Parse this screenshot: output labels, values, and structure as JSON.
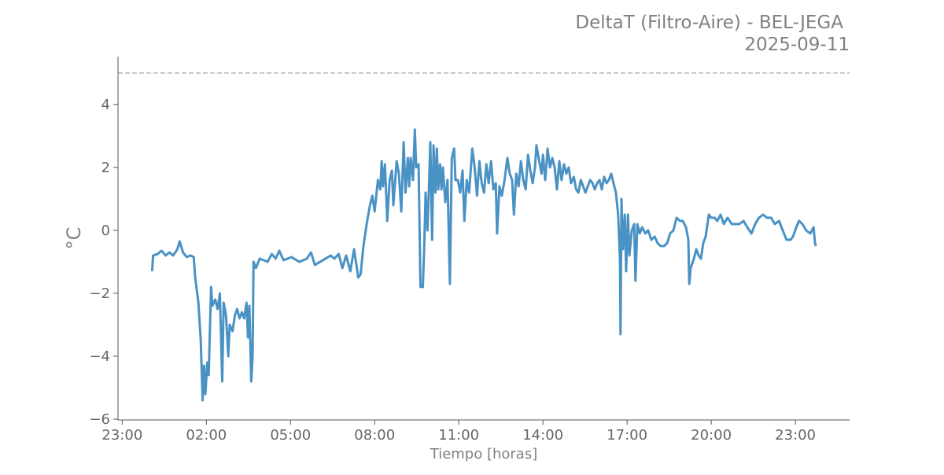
{
  "chart_data": {
    "type": "line",
    "title": "DeltaT (Filtro-Aire) - BEL-JEGA",
    "subtitle": "2025-09-11",
    "xlabel": "Tiempo [horas]",
    "ylabel": "°C",
    "xlim": [
      "2025-09-10 22:51",
      "2025-09-12 00:56"
    ],
    "ylim": [
      -6.0,
      5.52
    ],
    "grid": false,
    "reference_line": {
      "y": 5,
      "style": "dashed",
      "color": "#bbbbbb"
    },
    "line_color": "#4a92c4",
    "x_ticks": [
      {
        "label": "23:00",
        "time": "2025-09-10 23:00"
      },
      {
        "label": "02:00",
        "time": "2025-09-11 02:00"
      },
      {
        "label": "05:00",
        "time": "2025-09-11 05:00"
      },
      {
        "label": "08:00",
        "time": "2025-09-11 08:00"
      },
      {
        "label": "11:00",
        "time": "2025-09-11 11:00"
      },
      {
        "label": "14:00",
        "time": "2025-09-11 14:00"
      },
      {
        "label": "17:00",
        "time": "2025-09-11 17:00"
      },
      {
        "label": "20:00",
        "time": "2025-09-11 20:00"
      },
      {
        "label": "23:00",
        "time": "2025-09-11 23:00"
      }
    ],
    "y_ticks": [
      {
        "label": "4",
        "value": 4
      },
      {
        "label": "2",
        "value": 2
      },
      {
        "label": "0",
        "value": 0
      },
      {
        "label": "−2",
        "value": -2
      },
      {
        "label": "−4",
        "value": -4
      },
      {
        "label": "−6",
        "value": -6
      }
    ],
    "x": [
      "00:04",
      "00:06",
      "00:16",
      "00:24",
      "00:33",
      "00:41",
      "00:49",
      "00:58",
      "01:03",
      "01:10",
      "01:18",
      "01:26",
      "01:33",
      "01:36",
      "01:43",
      "01:48",
      "01:52",
      "01:55",
      "01:58",
      "02:02",
      "02:05",
      "02:10",
      "02:13",
      "02:19",
      "02:24",
      "02:29",
      "02:34",
      "02:37",
      "02:42",
      "02:47",
      "02:50",
      "02:56",
      "03:01",
      "03:06",
      "03:11",
      "03:16",
      "03:21",
      "03:26",
      "03:29",
      "03:32",
      "03:36",
      "03:39",
      "03:41",
      "03:46",
      "03:54",
      "04:11",
      "04:20",
      "04:28",
      "04:36",
      "04:45",
      "05:02",
      "05:19",
      "05:35",
      "05:44",
      "05:52",
      "06:09",
      "06:26",
      "06:34",
      "06:43",
      "06:51",
      "06:59",
      "07:08",
      "07:16",
      "07:25",
      "07:30",
      "07:36",
      "07:43",
      "07:50",
      "07:55",
      "08:00",
      "08:07",
      "08:12",
      "08:15",
      "08:18",
      "08:22",
      "08:27",
      "08:32",
      "08:37",
      "08:40",
      "08:47",
      "08:52",
      "08:57",
      "09:02",
      "09:06",
      "09:11",
      "09:14",
      "09:17",
      "09:22",
      "09:26",
      "09:29",
      "09:34",
      "09:38",
      "09:43",
      "09:46",
      "09:49",
      "09:53",
      "09:56",
      "09:59",
      "10:03",
      "10:06",
      "10:10",
      "10:13",
      "10:16",
      "10:20",
      "10:23",
      "10:26",
      "10:31",
      "10:36",
      "10:41",
      "10:45",
      "10:50",
      "10:53",
      "10:58",
      "11:03",
      "11:08",
      "11:12",
      "11:17",
      "11:22",
      "11:29",
      "11:34",
      "11:39",
      "11:44",
      "11:49",
      "11:54",
      "11:59",
      "12:04",
      "12:09",
      "12:14",
      "12:19",
      "12:22",
      "12:27",
      "12:32",
      "12:38",
      "12:44",
      "12:49",
      "12:54",
      "12:58",
      "13:03",
      "13:08",
      "13:13",
      "13:18",
      "13:23",
      "13:28",
      "13:33",
      "13:38",
      "13:43",
      "13:46",
      "13:52",
      "13:57",
      "14:00",
      "14:05",
      "14:10",
      "14:15",
      "14:20",
      "14:25",
      "14:30",
      "14:35",
      "14:40",
      "14:45",
      "14:50",
      "14:55",
      "15:00",
      "15:06",
      "15:11",
      "15:16",
      "15:21",
      "15:26",
      "15:31",
      "15:36",
      "15:41",
      "15:46",
      "15:51",
      "15:56",
      "16:01",
      "16:06",
      "16:11",
      "16:16",
      "16:21",
      "16:26",
      "16:31",
      "16:36",
      "16:41",
      "16:45",
      "16:46",
      "16:48",
      "16:51",
      "16:55",
      "16:58",
      "17:02",
      "17:05",
      "17:10",
      "17:15",
      "17:18",
      "17:22",
      "17:27",
      "17:32",
      "17:39",
      "17:45",
      "17:52",
      "17:59",
      "18:05",
      "18:12",
      "18:19",
      "18:26",
      "18:32",
      "18:39",
      "18:46",
      "18:53",
      "18:59",
      "19:06",
      "19:11",
      "19:13",
      "19:16",
      "19:23",
      "19:28",
      "19:33",
      "19:38",
      "19:43",
      "19:48",
      "19:55",
      "20:00",
      "20:07",
      "20:13",
      "20:20",
      "20:27",
      "20:35",
      "20:44",
      "20:52",
      "21:00",
      "21:09",
      "21:17",
      "21:26",
      "21:34",
      "21:42",
      "21:51",
      "21:59",
      "22:08",
      "22:16",
      "22:25",
      "22:33",
      "22:41",
      "22:50",
      "22:55",
      "23:02",
      "23:08",
      "23:15",
      "23:23",
      "23:32",
      "23:39",
      "23:42",
      "23:44"
    ],
    "values": [
      -1.3,
      -0.8,
      -0.75,
      -0.65,
      -0.8,
      -0.7,
      -0.8,
      -0.6,
      -0.35,
      -0.7,
      -0.85,
      -0.8,
      -0.85,
      -1.5,
      -2.3,
      -3.5,
      -5.4,
      -4.3,
      -5.2,
      -4.2,
      -4.6,
      -1.8,
      -2.4,
      -2.2,
      -2.5,
      -2.0,
      -4.8,
      -2.3,
      -2.7,
      -4.0,
      -3.0,
      -3.2,
      -2.7,
      -2.5,
      -2.8,
      -2.6,
      -2.8,
      -2.3,
      -3.4,
      -2.4,
      -4.8,
      -4.0,
      -1.0,
      -1.2,
      -0.9,
      -1.0,
      -0.75,
      -0.9,
      -0.65,
      -0.95,
      -0.85,
      -1.0,
      -0.9,
      -0.7,
      -1.1,
      -0.95,
      -0.8,
      -0.9,
      -0.75,
      -1.2,
      -0.8,
      -1.3,
      -0.6,
      -1.5,
      -1.4,
      -0.5,
      0.2,
      0.8,
      1.1,
      0.6,
      1.6,
      1.3,
      2.2,
      1.4,
      2.1,
      0.3,
      1.6,
      1.9,
      0.8,
      2.2,
      1.8,
      0.6,
      2.8,
      1.2,
      2.3,
      1.4,
      2.3,
      1.6,
      3.2,
      2.0,
      2.1,
      -1.8,
      -1.8,
      -0.6,
      1.2,
      0.0,
      1.3,
      2.8,
      -0.3,
      2.7,
      1.2,
      2.6,
      1.3,
      2.1,
      1.3,
      2.0,
      0.9,
      1.6,
      -1.7,
      2.3,
      2.6,
      1.6,
      1.6,
      1.2,
      1.9,
      0.3,
      1.6,
      1.2,
      2.6,
      2.0,
      1.1,
      2.2,
      1.5,
      1.2,
      2.1,
      1.5,
      2.2,
      1.3,
      1.5,
      -0.1,
      1.4,
      1.1,
      1.6,
      2.3,
      1.8,
      1.6,
      0.5,
      1.8,
      1.4,
      2.2,
      1.6,
      1.3,
      2.4,
      1.9,
      1.5,
      2.0,
      2.7,
      2.2,
      1.8,
      2.4,
      1.6,
      2.6,
      2.0,
      2.3,
      2.0,
      1.3,
      2.2,
      1.6,
      2.1,
      1.8,
      2.0,
      1.5,
      1.7,
      1.3,
      1.2,
      1.6,
      1.4,
      1.2,
      1.4,
      1.6,
      1.5,
      1.3,
      1.5,
      1.6,
      1.3,
      1.7,
      1.5,
      1.6,
      1.8,
      1.5,
      1.2,
      0.5,
      -1.0,
      -3.3,
      1.0,
      -0.6,
      0.5,
      -1.3,
      0.5,
      -0.8,
      0.0,
      0.2,
      -1.6,
      0.2,
      -0.1,
      0.1,
      -0.1,
      0.0,
      -0.3,
      -0.2,
      -0.4,
      -0.5,
      -0.5,
      -0.4,
      -0.1,
      0.0,
      0.4,
      0.3,
      0.3,
      0.1,
      -0.3,
      -1.7,
      -1.2,
      -0.9,
      -0.6,
      -0.8,
      -0.9,
      -0.4,
      -0.2,
      0.5,
      0.4,
      0.4,
      0.3,
      0.5,
      0.2,
      0.4,
      0.2,
      0.2,
      0.2,
      0.3,
      0.1,
      -0.1,
      0.2,
      0.4,
      0.5,
      0.4,
      0.4,
      0.2,
      0.3,
      0.0,
      -0.3,
      -0.3,
      -0.2,
      0.1,
      0.3,
      0.2,
      0.0,
      -0.1,
      0.1,
      -0.4,
      -0.5
    ]
  }
}
